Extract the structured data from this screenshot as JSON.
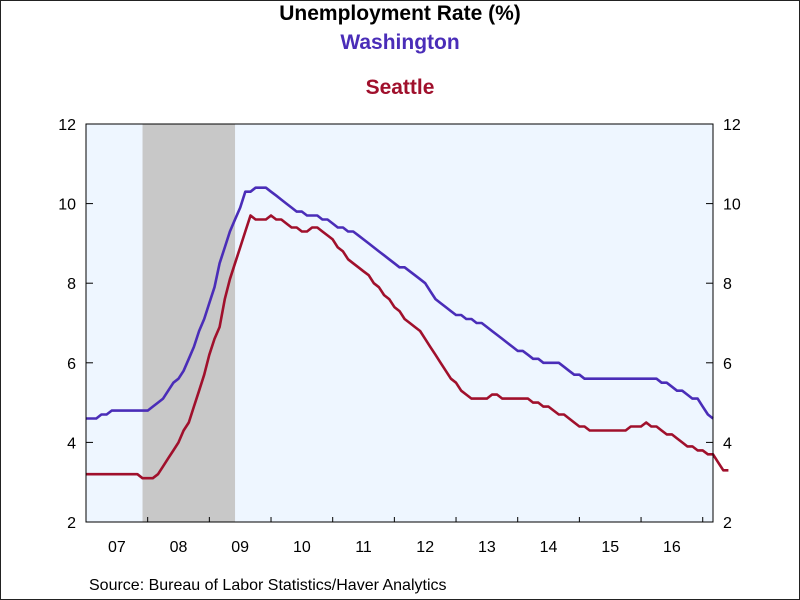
{
  "chart_data": {
    "type": "line",
    "title": "Unemployment Rate (%)",
    "source": "Source:  Bureau of Labor Statistics/Haver Analytics",
    "x_tick_labels": [
      "07",
      "08",
      "09",
      "10",
      "11",
      "12",
      "13",
      "14",
      "15",
      "16"
    ],
    "y_ticks": [
      2,
      4,
      6,
      8,
      10,
      12
    ],
    "ylim": [
      2,
      12
    ],
    "xlim": [
      "2007-01",
      "2017-03"
    ],
    "recession_shading": {
      "start": "2007-12",
      "end": "2009-06",
      "color": "#c8c8c8"
    },
    "background_color": "#eef6ff",
    "series": [
      {
        "name": "Washington",
        "color": "#4a2db8",
        "x_start": "2007-01",
        "monthly_values": [
          4.6,
          4.6,
          4.6,
          4.7,
          4.7,
          4.8,
          4.8,
          4.8,
          4.8,
          4.8,
          4.8,
          4.8,
          4.8,
          4.9,
          5.0,
          5.1,
          5.3,
          5.5,
          5.6,
          5.8,
          6.1,
          6.4,
          6.8,
          7.1,
          7.5,
          7.9,
          8.5,
          8.9,
          9.3,
          9.6,
          9.9,
          10.3,
          10.3,
          10.4,
          10.4,
          10.4,
          10.3,
          10.2,
          10.1,
          10.0,
          9.9,
          9.8,
          9.8,
          9.7,
          9.7,
          9.7,
          9.6,
          9.6,
          9.5,
          9.4,
          9.4,
          9.3,
          9.3,
          9.2,
          9.1,
          9.0,
          8.9,
          8.8,
          8.7,
          8.6,
          8.5,
          8.4,
          8.4,
          8.3,
          8.2,
          8.1,
          8.0,
          7.8,
          7.6,
          7.5,
          7.4,
          7.3,
          7.2,
          7.2,
          7.1,
          7.1,
          7.0,
          7.0,
          6.9,
          6.8,
          6.7,
          6.6,
          6.5,
          6.4,
          6.3,
          6.3,
          6.2,
          6.1,
          6.1,
          6.0,
          6.0,
          6.0,
          6.0,
          5.9,
          5.8,
          5.7,
          5.7,
          5.6,
          5.6,
          5.6,
          5.6,
          5.6,
          5.6,
          5.6,
          5.6,
          5.6,
          5.6,
          5.6,
          5.6,
          5.6,
          5.6,
          5.6,
          5.5,
          5.5,
          5.4,
          5.3,
          5.3,
          5.2,
          5.1,
          5.1,
          4.9,
          4.7,
          4.6
        ]
      },
      {
        "name": "Seattle",
        "color": "#a0102c",
        "x_start": "2007-01",
        "monthly_values": [
          3.2,
          3.2,
          3.2,
          3.2,
          3.2,
          3.2,
          3.2,
          3.2,
          3.2,
          3.2,
          3.2,
          3.1,
          3.1,
          3.1,
          3.2,
          3.4,
          3.6,
          3.8,
          4.0,
          4.3,
          4.5,
          4.9,
          5.3,
          5.7,
          6.2,
          6.6,
          6.9,
          7.6,
          8.1,
          8.5,
          8.9,
          9.3,
          9.7,
          9.6,
          9.6,
          9.6,
          9.7,
          9.6,
          9.6,
          9.5,
          9.4,
          9.4,
          9.3,
          9.3,
          9.4,
          9.4,
          9.3,
          9.2,
          9.1,
          8.9,
          8.8,
          8.6,
          8.5,
          8.4,
          8.3,
          8.2,
          8.0,
          7.9,
          7.7,
          7.6,
          7.4,
          7.3,
          7.1,
          7.0,
          6.9,
          6.8,
          6.6,
          6.4,
          6.2,
          6.0,
          5.8,
          5.6,
          5.5,
          5.3,
          5.2,
          5.1,
          5.1,
          5.1,
          5.1,
          5.2,
          5.2,
          5.1,
          5.1,
          5.1,
          5.1,
          5.1,
          5.1,
          5.0,
          5.0,
          4.9,
          4.9,
          4.8,
          4.7,
          4.7,
          4.6,
          4.5,
          4.4,
          4.4,
          4.3,
          4.3,
          4.3,
          4.3,
          4.3,
          4.3,
          4.3,
          4.3,
          4.4,
          4.4,
          4.4,
          4.5,
          4.4,
          4.4,
          4.3,
          4.2,
          4.2,
          4.1,
          4.0,
          3.9,
          3.9,
          3.8,
          3.8,
          3.7,
          3.7,
          3.5,
          3.3,
          3.3
        ]
      }
    ]
  }
}
